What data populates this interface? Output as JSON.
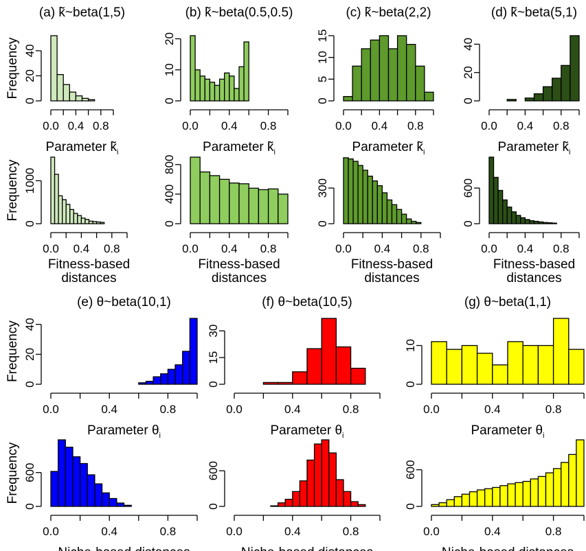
{
  "colors": {
    "a": "#cfe9bc",
    "b": "#8fcd5e",
    "c": "#5e9a2c",
    "d": "#2b4f16",
    "e": "#0000ff",
    "f": "#ff0000",
    "g": "#ffff00",
    "stroke": "#000000"
  },
  "chart_data": [
    {
      "type": "bar",
      "panel": "a-top",
      "title": "(a) k̃~beta(1,5)",
      "xlabel": "Parameter k̃i",
      "ylabel": "Frequency",
      "x_ticks": [
        "0.0",
        "0.4",
        "0.8"
      ],
      "y_ticks": [
        "0",
        "20",
        "40"
      ],
      "xlim": [
        0,
        1
      ],
      "ylim": [
        0,
        52
      ],
      "bin_width": 0.1,
      "bin_start": 0,
      "values": [
        52,
        21,
        13,
        7,
        4,
        2,
        1,
        0,
        0,
        0
      ]
    },
    {
      "type": "bar",
      "panel": "b-top",
      "title": "(b) k̃~beta(0.5,0.5)",
      "xlabel": "Parameter k̃i",
      "ylabel": "",
      "x_ticks": [
        "0.0",
        "0.4",
        "0.8"
      ],
      "y_ticks": [
        "0",
        "10",
        "20"
      ],
      "xlim": [
        0,
        1
      ],
      "ylim": [
        0,
        21
      ],
      "bin_width": 0.05,
      "bin_start": 0,
      "values": [
        21,
        10,
        8,
        7,
        6,
        5,
        7,
        9,
        8,
        4,
        11,
        19
      ]
    },
    {
      "type": "bar",
      "panel": "c-top",
      "title": "(c) k̃~beta(2,2)",
      "xlabel": "Parameter k̃i",
      "ylabel": "",
      "x_ticks": [
        "0.0",
        "0.4",
        "0.8"
      ],
      "y_ticks": [
        "0",
        "5",
        "10",
        "15"
      ],
      "xlim": [
        0,
        1
      ],
      "ylim": [
        0,
        15
      ],
      "bin_width": 0.1,
      "bin_start": 0,
      "values": [
        1,
        8,
        12,
        14,
        15,
        12,
        15,
        13,
        8,
        2
      ]
    },
    {
      "type": "bar",
      "panel": "d-top",
      "title": "(d) k̃~beta(5,1)",
      "xlabel": "Parameter k̃i",
      "ylabel": "",
      "x_ticks": [
        "0.0",
        "0.4",
        "0.8"
      ],
      "y_ticks": [
        "0",
        "20",
        "40"
      ],
      "xlim": [
        0,
        1
      ],
      "ylim": [
        0,
        46
      ],
      "bin_width": 0.1,
      "bin_start": 0,
      "values": [
        0,
        0,
        1,
        0,
        2,
        5,
        10,
        16,
        25,
        46
      ]
    },
    {
      "type": "bar",
      "panel": "a-bottom",
      "title": "",
      "xlabel": "Fitness-based distances",
      "ylabel": "Frequency",
      "x_ticks": [
        "0.0",
        "0.4",
        "0.8"
      ],
      "y_ticks": [
        "0",
        "1000"
      ],
      "xlim": [
        0,
        1
      ],
      "ylim": [
        0,
        1550
      ],
      "bin_width": 0.05,
      "bin_start": 0,
      "values": [
        1550,
        1150,
        650,
        560,
        450,
        330,
        240,
        190,
        130,
        100,
        60,
        50,
        40,
        30,
        0,
        0,
        0,
        0,
        0,
        0
      ]
    },
    {
      "type": "bar",
      "panel": "b-bottom",
      "title": "",
      "xlabel": "Fitness-based distances",
      "ylabel": "",
      "x_ticks": [
        "0.0",
        "0.4",
        "0.8"
      ],
      "y_ticks": [
        "0",
        "400",
        "800"
      ],
      "xlim": [
        0,
        1
      ],
      "ylim": [
        0,
        900
      ],
      "bin_width": 0.1,
      "bin_start": 0,
      "values": [
        900,
        700,
        650,
        600,
        550,
        540,
        480,
        460,
        470,
        400
      ]
    },
    {
      "type": "bar",
      "panel": "c-bottom",
      "title": "",
      "xlabel": "Fitness-based distances",
      "ylabel": "",
      "x_ticks": [
        "0.0",
        "0.4",
        "0.8"
      ],
      "y_ticks": [
        "0",
        "300"
      ],
      "xlim": [
        0,
        1
      ],
      "ylim": [
        0,
        560
      ],
      "bin_width": 0.05,
      "bin_start": 0,
      "values": [
        555,
        545,
        525,
        490,
        450,
        400,
        360,
        320,
        260,
        200,
        160,
        120,
        80,
        40,
        20,
        10,
        0,
        0,
        0,
        0
      ]
    },
    {
      "type": "bar",
      "panel": "d-bottom",
      "title": "",
      "xlabel": "Fitness-based distances",
      "ylabel": "",
      "x_ticks": [
        "0.0",
        "0.4",
        "0.8"
      ],
      "y_ticks": [
        "0",
        "600"
      ],
      "xlim": [
        0,
        1
      ],
      "ylim": [
        0,
        1120
      ],
      "bin_width": 0.05,
      "bin_start": 0,
      "values": [
        1120,
        780,
        560,
        400,
        280,
        200,
        140,
        100,
        70,
        50,
        40,
        30,
        20,
        15,
        10,
        0,
        0,
        0,
        0,
        0
      ]
    },
    {
      "type": "bar",
      "panel": "e-top",
      "title": "(e) θ~beta(10,1)",
      "xlabel": "Parameter θi",
      "ylabel": "Frequency",
      "x_ticks": [
        "0.0",
        "0.4",
        "0.8"
      ],
      "y_ticks": [
        "0",
        "20",
        "40"
      ],
      "xlim": [
        0,
        1
      ],
      "ylim": [
        0,
        44
      ],
      "bin_width": 0.05,
      "bin_start": 0,
      "values": [
        0,
        0,
        0,
        0,
        0,
        0,
        0,
        0,
        0,
        0,
        0,
        0,
        1,
        2,
        5,
        7,
        10,
        13,
        22,
        44
      ]
    },
    {
      "type": "bar",
      "panel": "f-top",
      "title": "(f) θ~beta(10,5)",
      "xlabel": "Parameter θi",
      "ylabel": "",
      "x_ticks": [
        "0.0",
        "0.4",
        "0.8"
      ],
      "y_ticks": [
        "0",
        "15",
        "30"
      ],
      "xlim": [
        0,
        1
      ],
      "ylim": [
        0,
        37
      ],
      "bin_width": 0.1,
      "bin_start": 0,
      "values": [
        0,
        0,
        1,
        1,
        7,
        20,
        37,
        21,
        9,
        0
      ]
    },
    {
      "type": "bar",
      "panel": "g-top",
      "title": "(g) θ~beta(1,1)",
      "xlabel": "Parameter θi",
      "ylabel": "",
      "x_ticks": [
        "0.0",
        "0.4",
        "0.8"
      ],
      "y_ticks": [
        "0",
        "10"
      ],
      "xlim": [
        0,
        1
      ],
      "ylim": [
        0,
        17
      ],
      "bin_width": 0.1,
      "bin_start": 0,
      "values": [
        11,
        9,
        10,
        8,
        5,
        11,
        10,
        10,
        17,
        9
      ]
    },
    {
      "type": "bar",
      "panel": "e-bottom",
      "title": "",
      "xlabel": "Niche-based distances",
      "ylabel": "Frequency",
      "x_ticks": [
        "0.0",
        "0.4",
        "0.8"
      ],
      "y_ticks": [
        "0",
        "600"
      ],
      "xlim": [
        0,
        1
      ],
      "ylim": [
        0,
        1180
      ],
      "bin_width": 0.05,
      "bin_start": 0,
      "values": [
        620,
        1180,
        1050,
        880,
        760,
        560,
        400,
        240,
        140,
        60,
        20,
        0,
        0,
        0,
        0,
        0,
        0,
        0,
        0,
        0
      ]
    },
    {
      "type": "bar",
      "panel": "f-bottom",
      "title": "",
      "xlabel": "Niche-based distances",
      "ylabel": "",
      "x_ticks": [
        "0.0",
        "0.4",
        "0.8"
      ],
      "y_ticks": [
        "0",
        "600"
      ],
      "xlim": [
        0,
        1
      ],
      "ylim": [
        0,
        1120
      ],
      "bin_width": 0.05,
      "bin_start": 0,
      "values": [
        0,
        0,
        0,
        0,
        0,
        10,
        60,
        120,
        250,
        430,
        780,
        1050,
        1120,
        900,
        450,
        250,
        80,
        30,
        0,
        0
      ]
    },
    {
      "type": "bar",
      "panel": "g-bottom",
      "title": "",
      "xlabel": "Niche-based distances",
      "ylabel": "",
      "x_ticks": [
        "0.0",
        "0.4",
        "0.8"
      ],
      "y_ticks": [
        "0",
        "600"
      ],
      "xlim": [
        0,
        1
      ],
      "ylim": [
        0,
        1090
      ],
      "bin_width": 0.05,
      "bin_start": 0,
      "values": [
        30,
        60,
        110,
        160,
        200,
        240,
        270,
        290,
        310,
        340,
        370,
        390,
        410,
        450,
        490,
        550,
        620,
        720,
        850,
        1090
      ]
    }
  ]
}
